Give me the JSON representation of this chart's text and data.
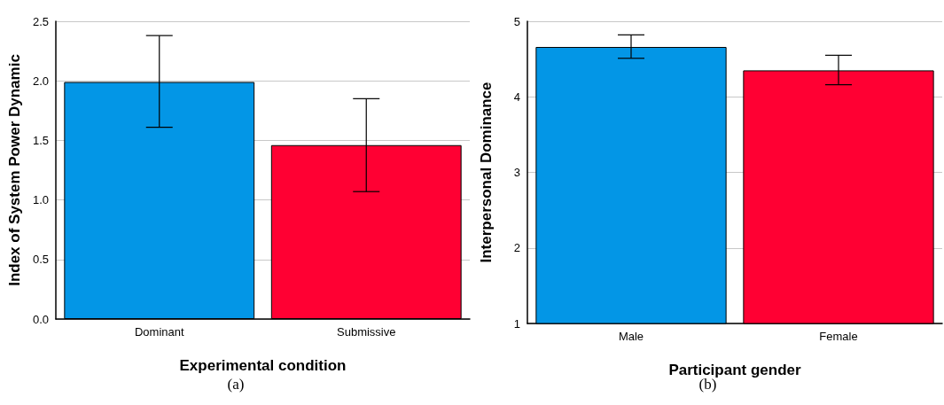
{
  "chart_data": [
    {
      "type": "bar",
      "xlabel": "Experimental condition",
      "ylabel": "Index of System Power Dynamic",
      "categories": [
        "Dominant",
        "Submissive"
      ],
      "values": [
        1.99,
        1.46
      ],
      "colors": [
        "#0396e6",
        "#ff0033"
      ],
      "errors": [
        [
          1.61,
          2.38
        ],
        [
          1.07,
          1.85
        ]
      ],
      "ylim": [
        0,
        2.5
      ],
      "yticks": [
        {
          "value": 0,
          "label": "0.0"
        },
        0.5,
        {
          "value": 1,
          "label": "1.0"
        },
        1.5,
        {
          "value": 2,
          "label": "2.0"
        },
        2.5
      ],
      "grid": "y",
      "annotations": [
        "(a)"
      ]
    },
    {
      "type": "bar",
      "xlabel": "Participant gender",
      "ylabel": "Interpersonal Dominance",
      "categories": [
        "Male",
        "Female"
      ],
      "values": [
        4.66,
        4.35
      ],
      "colors": [
        "#0396e6",
        "#ff0033"
      ],
      "errors": [
        [
          4.51,
          4.82
        ],
        [
          4.16,
          4.55
        ]
      ],
      "ylim": [
        1,
        5
      ],
      "yticks": [
        1,
        2,
        3,
        4,
        5
      ],
      "grid": "y",
      "annotations": [
        "(b)"
      ]
    }
  ]
}
